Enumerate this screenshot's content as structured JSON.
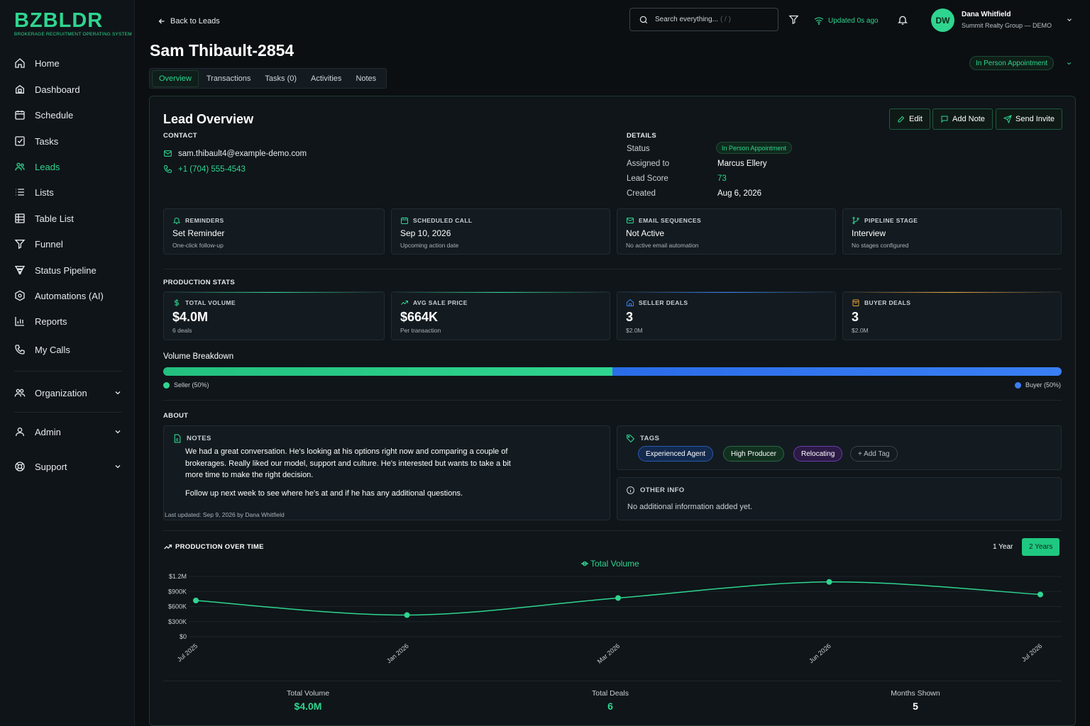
{
  "brand": {
    "title": "BZBLDR",
    "subtitle": "BROKERAGE RECRUITMENT OPERATING SYSTEM",
    "accent": "#2fd58f"
  },
  "sidebar": {
    "items": [
      {
        "label": "Home",
        "icon": "home-icon"
      },
      {
        "label": "Dashboard",
        "icon": "dashboard-icon"
      },
      {
        "label": "Schedule",
        "icon": "calendar-icon"
      },
      {
        "label": "Tasks",
        "icon": "checkbox-icon"
      },
      {
        "label": "Leads",
        "icon": "users-icon",
        "active": true
      },
      {
        "label": "Lists",
        "icon": "list-icon"
      },
      {
        "label": "Table List",
        "icon": "table-icon"
      },
      {
        "label": "Funnel",
        "icon": "funnel-icon"
      },
      {
        "label": "Status Pipeline",
        "icon": "pipeline-icon"
      },
      {
        "label": "Automations (AI)",
        "icon": "automation-icon"
      },
      {
        "label": "Reports",
        "icon": "chart-icon"
      },
      {
        "label": "My Calls",
        "icon": "phone-icon"
      }
    ],
    "groups": [
      {
        "label": "Organization",
        "icon": "organization-icon"
      },
      {
        "label": "Admin",
        "icon": "admin-icon"
      },
      {
        "label": "Support",
        "icon": "support-icon"
      }
    ]
  },
  "header": {
    "back_label": "Back to Leads",
    "search_placeholder": "Search everything...",
    "search_shortcut": "( / )",
    "updated": "Updated 0s ago",
    "user_initials": "DW",
    "user_name": "Dana Whitfield",
    "user_org": "Summit Realty Group — DEMO"
  },
  "lead": {
    "name": "Sam Thibault-2854",
    "status": "In Person Appointment"
  },
  "tabs": [
    "Overview",
    "Transactions",
    "Tasks (0)",
    "Activities",
    "Notes"
  ],
  "overview": {
    "title": "Lead Overview",
    "actions": {
      "edit": "Edit",
      "add_note": "Add Note",
      "send_invite": "Send Invite"
    },
    "contact": {
      "heading": "CONTACT",
      "email": "sam.thibault4@example-demo.com",
      "phone": "+1 (704) 555-4543"
    },
    "details": {
      "heading": "DETAILS",
      "status_label": "Status",
      "status_value": "In Person Appointment",
      "assigned_label": "Assigned to",
      "assigned_value": "Marcus Ellery",
      "score_label": "Lead Score",
      "score_value": "73",
      "created_label": "Created",
      "created_value": "Aug 6, 2026"
    },
    "tiles": [
      {
        "head": "REMINDERS",
        "value": "Set Reminder",
        "sub": "One-click follow-up",
        "icon": "bell-icon"
      },
      {
        "head": "SCHEDULED CALL",
        "value": "Sep 10, 2026",
        "sub": "Upcoming action date",
        "icon": "calendar-icon"
      },
      {
        "head": "EMAIL SEQUENCES",
        "value": "Not Active",
        "sub": "No active email automation",
        "icon": "mail-icon"
      },
      {
        "head": "PIPELINE STAGE",
        "value": "Interview",
        "sub": "No stages configured",
        "icon": "branch-icon"
      }
    ]
  },
  "production": {
    "heading": "PRODUCTION STATS",
    "stats": [
      {
        "head": "TOTAL VOLUME",
        "value": "$4.0M",
        "sub": "6 deals",
        "icon": "dollar-icon",
        "color": "#2fd58f"
      },
      {
        "head": "AVG SALE PRICE",
        "value": "$664K",
        "sub": "Per transaction",
        "icon": "trend-icon",
        "color": "#2fd58f"
      },
      {
        "head": "SELLER DEALS",
        "value": "3",
        "sub": "$2.0M",
        "icon": "house-icon",
        "color": "#3a7ff5"
      },
      {
        "head": "BUYER DEALS",
        "value": "3",
        "sub": "$2.0M",
        "icon": "bag-icon",
        "color": "#e8a23a"
      }
    ],
    "breakdown_label": "Volume Breakdown",
    "seller_label": "Seller (50%)",
    "seller_pct": 50,
    "buyer_label": "Buyer (50%)",
    "buyer_pct": 50
  },
  "about": {
    "heading": "ABOUT",
    "notes_heading": "NOTES",
    "note_p1": "We had a great conversation. He's looking at his options right now and comparing a couple of brokerages. Really liked our model, support and culture. He's interested but wants to take a bit more time to make the right decision.",
    "note_p2": "Follow up next week to see where he's at and if he has any additional questions.",
    "note_updated": "Last updated: Sep 9, 2026 by Dana Whitfield",
    "tags_heading": "TAGS",
    "tags": [
      "Experienced Agent",
      "High Producer",
      "Relocating"
    ],
    "add_tag": "+ Add Tag",
    "other_heading": "OTHER INFO",
    "other_text": "No additional information added yet."
  },
  "chart_section": {
    "heading": "PRODUCTION OVER TIME",
    "range_1y": "1 Year",
    "range_2y": "2 Years"
  },
  "chart_data": {
    "type": "line",
    "legend": "Total Volume",
    "x": [
      "Jul 2025",
      "Jan 2026",
      "Mar 2026",
      "Jun 2026",
      "Jul 2026"
    ],
    "y_ticks": [
      "$1.2M",
      "$900K",
      "$600K",
      "$300K",
      "$0"
    ],
    "ylim": [
      0,
      1200000
    ],
    "series": [
      {
        "name": "Total Volume",
        "values": [
          720000,
          430000,
          770000,
          1090000,
          840000
        ]
      }
    ]
  },
  "summary": [
    {
      "label": "Total Volume",
      "value": "$4.0M",
      "color": "#2fd58f"
    },
    {
      "label": "Total Deals",
      "value": "6",
      "color": "#2fd58f"
    },
    {
      "label": "Months Shown",
      "value": "5",
      "color": "#ffffff"
    }
  ]
}
